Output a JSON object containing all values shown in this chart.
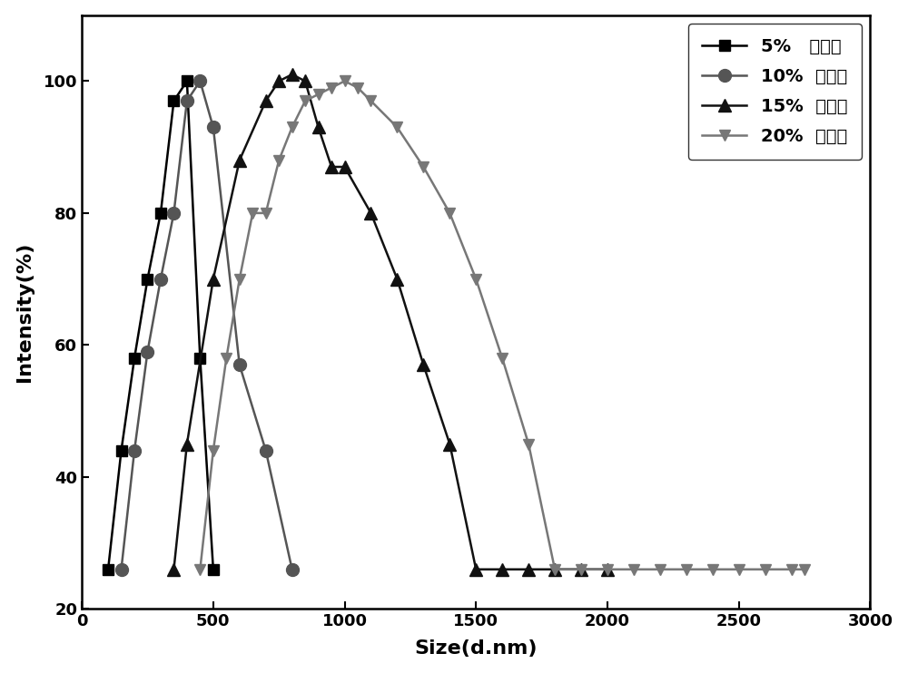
{
  "series_5": {
    "x": [
      100,
      150,
      200,
      250,
      300,
      350,
      400,
      450,
      500
    ],
    "y": [
      26,
      44,
      58,
      70,
      80,
      97,
      100,
      58,
      26
    ],
    "label": "5%   壳聚糖",
    "marker": "s",
    "color": "#000000"
  },
  "series_10": {
    "x": [
      150,
      200,
      250,
      300,
      350,
      400,
      450,
      500,
      600,
      700,
      800
    ],
    "y": [
      26,
      44,
      59,
      70,
      80,
      97,
      100,
      93,
      57,
      44,
      26
    ],
    "label": "10%  壳聚糖",
    "marker": "o",
    "color": "#555555"
  },
  "series_15": {
    "x": [
      350,
      400,
      500,
      600,
      700,
      750,
      800,
      850,
      900,
      950,
      1000,
      1100,
      1200,
      1300,
      1400,
      1500,
      1600,
      1700,
      1800,
      1900,
      2000
    ],
    "y": [
      26,
      45,
      70,
      88,
      97,
      100,
      101,
      100,
      93,
      87,
      87,
      80,
      70,
      57,
      45,
      26,
      26,
      26,
      26,
      26,
      26
    ],
    "label": "15%  壳聚糖",
    "marker": "^",
    "color": "#111111"
  },
  "series_20": {
    "x": [
      450,
      500,
      550,
      600,
      650,
      700,
      750,
      800,
      850,
      900,
      950,
      1000,
      1050,
      1100,
      1200,
      1300,
      1400,
      1500,
      1600,
      1700,
      1800,
      1900,
      2000,
      2100,
      2200,
      2300,
      2400,
      2500,
      2600,
      2700,
      2750
    ],
    "y": [
      26,
      44,
      58,
      70,
      80,
      80,
      88,
      93,
      97,
      98,
      99,
      100,
      99,
      97,
      93,
      87,
      80,
      70,
      58,
      45,
      26,
      26,
      26,
      26,
      26,
      26,
      26,
      26,
      26,
      26,
      26
    ],
    "label": "20%  壳聚糖",
    "marker": "v",
    "color": "#777777"
  },
  "xlabel": "Size(d.nm)",
  "ylabel": "Intensity(%)",
  "xlim": [
    0,
    3000
  ],
  "ylim": [
    20,
    110
  ],
  "xticks": [
    0,
    500,
    1000,
    1500,
    2000,
    2500,
    3000
  ],
  "yticks": [
    20,
    40,
    60,
    80,
    100
  ],
  "legend_loc": "upper right",
  "background_color": "#ffffff"
}
